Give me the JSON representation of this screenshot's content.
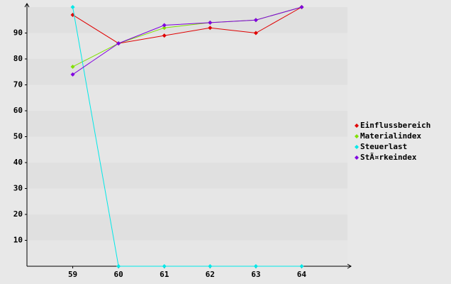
{
  "chart_data": {
    "type": "line",
    "x": [
      59,
      60,
      61,
      62,
      63,
      64
    ],
    "xlim": [
      58,
      65
    ],
    "xticks": [
      59,
      60,
      61,
      62,
      63,
      64
    ],
    "ylim": [
      0,
      100
    ],
    "yticks": [
      10,
      20,
      30,
      40,
      50,
      60,
      70,
      80,
      90
    ],
    "grid": true,
    "legend": "right",
    "series": [
      {
        "name": "Einflussbereich",
        "color": "#e00000",
        "values": [
          97,
          86,
          89,
          92,
          90,
          100
        ]
      },
      {
        "name": "Materialindex",
        "color": "#80e000",
        "values": [
          77,
          86,
          92,
          94,
          95,
          100
        ]
      },
      {
        "name": "Steuerlast",
        "color": "#00e8e8",
        "values": [
          100,
          0,
          0,
          0,
          0,
          0
        ]
      },
      {
        "name": "StÃ¤rkeindex",
        "color": "#8000e0",
        "values": [
          74,
          86,
          93,
          94,
          95,
          100
        ]
      }
    ]
  }
}
